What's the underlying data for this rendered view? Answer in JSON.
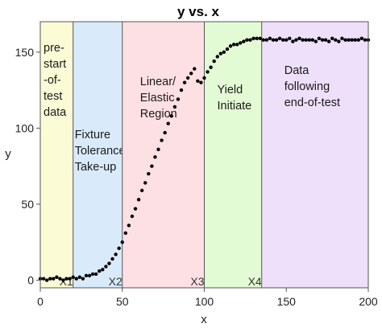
{
  "chart_data": {
    "type": "scatter",
    "title": "y vs. x",
    "xlabel": "x",
    "ylabel": "y",
    "xlim": [
      0,
      200
    ],
    "ylim": [
      -5,
      170
    ],
    "xticks": [
      "0",
      "50",
      "100",
      "150",
      "200"
    ],
    "yticks": [
      "0",
      "50",
      "100",
      "150"
    ],
    "grid": false,
    "regions": [
      {
        "lines": [
          "pre-",
          "start",
          "-of-",
          "test",
          "data"
        ],
        "x_start": 0,
        "x_end": 20,
        "color": "#fbfbd6"
      },
      {
        "lines": [
          "Fixture",
          "Tolerance",
          "Take-up"
        ],
        "x_start": 20,
        "x_end": 50,
        "color": "#d9ebfb"
      },
      {
        "lines": [
          "Linear/",
          "Elastic",
          "Region"
        ],
        "x_start": 50,
        "x_end": 100,
        "color": "#fde0e4"
      },
      {
        "lines": [
          "Yield",
          "Initiate"
        ],
        "x_start": 100,
        "x_end": 135,
        "color": "#e3fbd4"
      },
      {
        "lines": [
          "Data",
          "following",
          "end-of-test"
        ],
        "x_start": 135,
        "x_end": 200,
        "color": "#eee0fb"
      }
    ],
    "markers": [
      {
        "label": "X1",
        "x": 20
      },
      {
        "label": "X2",
        "x": 50
      },
      {
        "label": "X3",
        "x": 100
      },
      {
        "label": "X4",
        "x": 135
      }
    ],
    "series": [
      {
        "marker_color": "#000000",
        "x": [
          0,
          2,
          4,
          6,
          8,
          10,
          12,
          14,
          16,
          18,
          20,
          22,
          24,
          26,
          28,
          30,
          32,
          34,
          36,
          38,
          40,
          42,
          44,
          46,
          48,
          50,
          52,
          54,
          56,
          58,
          60,
          62,
          64,
          66,
          68,
          70,
          72,
          74,
          76,
          78,
          80,
          82,
          84,
          86,
          88,
          90,
          92,
          94,
          96,
          98,
          100,
          102,
          104,
          106,
          108,
          110,
          112,
          114,
          116,
          118,
          120,
          122,
          124,
          126,
          128,
          130,
          132,
          134,
          136,
          138,
          140,
          142,
          144,
          146,
          148,
          150,
          152,
          154,
          156,
          158,
          160,
          162,
          164,
          166,
          168,
          170,
          172,
          174,
          176,
          178,
          180,
          182,
          184,
          186,
          188,
          190,
          192,
          194,
          196,
          198,
          200
        ],
        "y": [
          1,
          1,
          0,
          1,
          1,
          2,
          1,
          0,
          1,
          1,
          2,
          1,
          2,
          1,
          3,
          3,
          4,
          4,
          6,
          7,
          9,
          11,
          14,
          17,
          21,
          25,
          31,
          36,
          42,
          47,
          53,
          59,
          64,
          70,
          75,
          81,
          86,
          92,
          97,
          103,
          108,
          114,
          119,
          125,
          130,
          133,
          136,
          139,
          131,
          130,
          133,
          137,
          140,
          144,
          147,
          149,
          150,
          152,
          154,
          155,
          155,
          156,
          157,
          158,
          158,
          159,
          159,
          159,
          158,
          158,
          159,
          158,
          158,
          159,
          158,
          158,
          159,
          157,
          158,
          159,
          158,
          158,
          158,
          158,
          157,
          159,
          158,
          158,
          157,
          159,
          158,
          157,
          159,
          158,
          158,
          158,
          158,
          158,
          159,
          158,
          158
        ]
      }
    ]
  }
}
